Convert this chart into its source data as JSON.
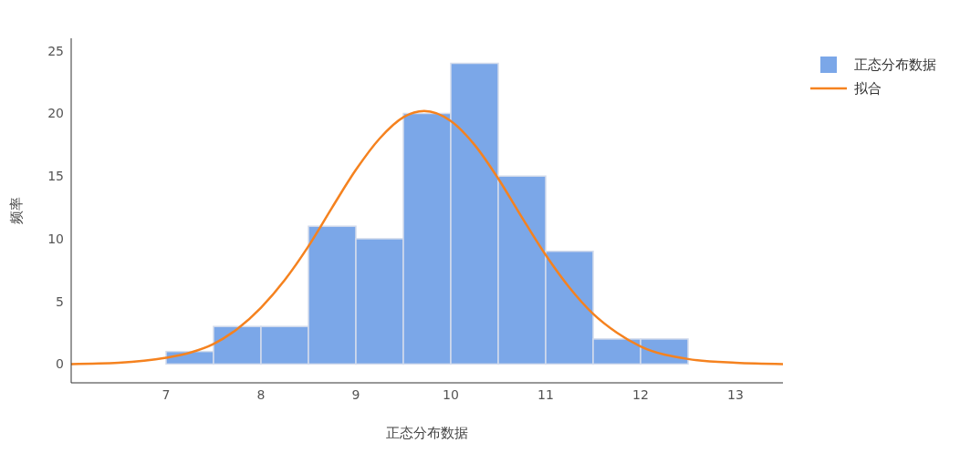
{
  "chart_data": {
    "type": "histogram",
    "xlabel": "正态分布数据",
    "ylabel": "频率",
    "bins": [
      7,
      7.5,
      8,
      8.5,
      9,
      9.5,
      10,
      10.5,
      11,
      11.5,
      12,
      12.5
    ],
    "series": [
      {
        "name": "正态分布数据",
        "color": "#7ba7e8",
        "values": [
          1,
          3,
          3,
          11,
          10,
          20,
          24,
          15,
          9,
          2,
          2
        ]
      },
      {
        "name": "拟合",
        "type": "line",
        "color": "#f5821f",
        "x": [
          6,
          6.5,
          7,
          7.25,
          7.5,
          7.75,
          8,
          8.25,
          8.5,
          8.75,
          9,
          9.25,
          9.5,
          9.72,
          10,
          10.25,
          10.5,
          10.75,
          11,
          11.25,
          11.5,
          11.75,
          12,
          12.5,
          13,
          13.5
        ],
        "values": [
          0,
          0.1,
          0.5,
          0.9,
          1.6,
          2.8,
          4.5,
          6.7,
          9.4,
          12.5,
          15.5,
          18,
          19.7,
          20.2,
          19.4,
          17.5,
          14.8,
          11.7,
          8.7,
          6.1,
          4,
          2.5,
          1.4,
          0.4,
          0.1,
          0
        ]
      }
    ],
    "xlim": [
      6,
      13.5
    ],
    "xticks": [
      7,
      8,
      9,
      10,
      11,
      12,
      13
    ],
    "ylim": [
      -1.5,
      26
    ],
    "yticks": [
      0,
      5,
      10,
      15,
      20,
      25
    ],
    "grid": false,
    "legend": "top right"
  }
}
